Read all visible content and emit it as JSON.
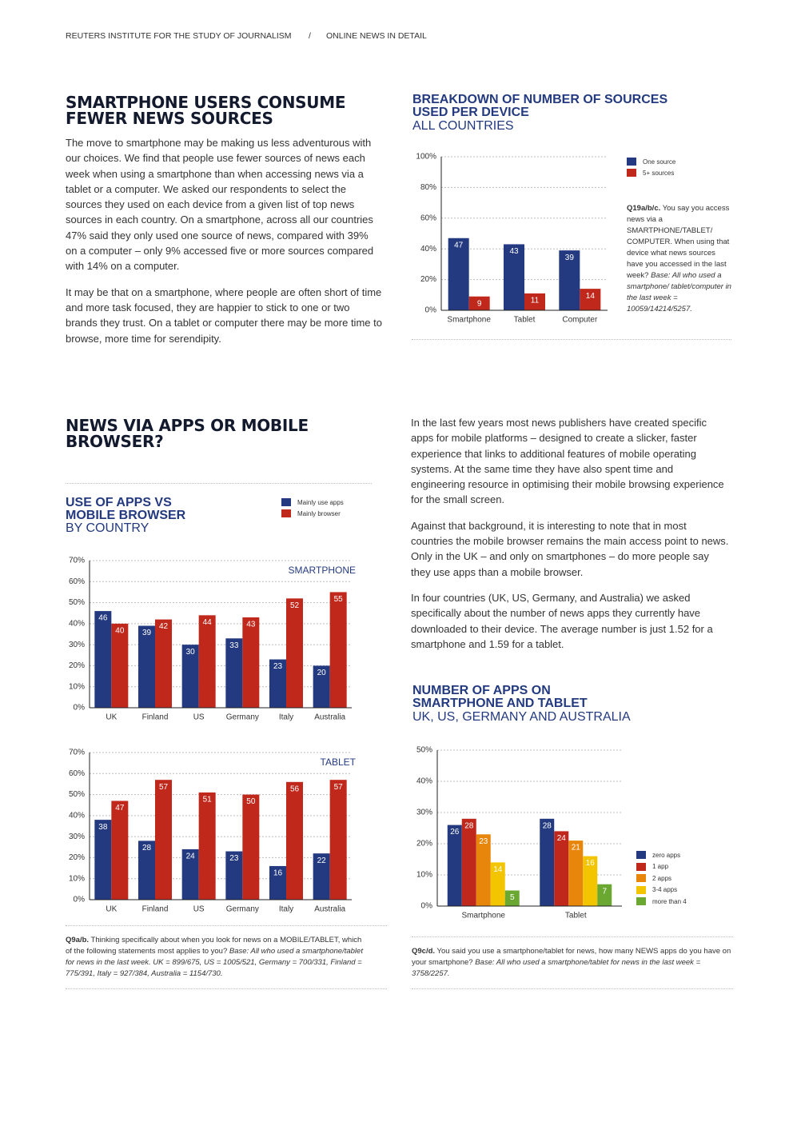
{
  "header": {
    "left": "REUTERS INSTITUTE FOR THE STUDY OF JOURNALISM",
    "separator": "/",
    "right": "ONLINE NEWS IN DETAIL"
  },
  "sections": [
    {
      "heading": "SMARTPHONE USERS CONSUME FEWER NEWS SOURCES",
      "paragraphs": [
        "The move to smartphone may be making us less adventurous with our choices. We find that people use fewer sources of news each week when using a smartphone than when accessing news via a tablet or a computer. We asked our respondents to select the sources they used on each device from a given list of top news sources in each country. On a smartphone, across all our countries 47% said they only used one source of news, compared with 39% on a computer – only 9% accessed five or more sources compared with 14% on a computer.",
        "It may be that on a smartphone, where people are often short of time and more task focused, they are happier to stick to one or two brands they trust. On a tablet or computer there may be more time to browse, more time for serendipity."
      ]
    },
    {
      "heading": "NEWS VIA APPS OR MOBILE BROWSER?",
      "paragraphs": [
        "In the last few years most news publishers have created specific apps for mobile platforms – designed to create a slicker, faster experience that links to additional features of mobile operating systems. At the same time they have also spent time and engineering resource in optimising their mobile browsing experience for the small screen.",
        "Against that background, it is interesting to note that in most countries the mobile browser remains the main access point to news. Only in the UK – and only on smartphones – do more people say they use apps than a mobile browser.",
        "In four countries (UK, US, Germany, and Australia) we asked specifically about the number of news apps they currently have downloaded to their device. The average number is just 1.52 for a smartphone and 1.59 for a tablet."
      ]
    }
  ],
  "chart_data": [
    {
      "type": "bar",
      "title": "BREAKDOWN OF NUMBER OF SOURCES USED PER DEVICE",
      "subtitle": "ALL COUNTRIES",
      "categories": [
        "Smartphone",
        "Tablet",
        "Computer"
      ],
      "series": [
        {
          "name": "One source",
          "color": "#233a80",
          "values": [
            47,
            43,
            39
          ]
        },
        {
          "name": "5+ sources",
          "color": "#c0281c",
          "values": [
            9,
            11,
            14
          ]
        }
      ],
      "ylim": [
        0,
        100
      ],
      "yticks": [
        {
          "value": 0,
          "label": "0%"
        },
        {
          "value": 20,
          "label": "20%"
        },
        {
          "value": 40,
          "label": "40%"
        },
        {
          "value": 60,
          "label": "60%"
        },
        {
          "value": 80,
          "label": "80%"
        },
        {
          "value": 100,
          "label": "100%"
        }
      ],
      "grid": true,
      "note": {
        "bold": "Q19a/b/c.",
        "text": "You say you access news via a SMARTPHONE/TABLET/ COMPUTER. When using that device what news sources have you accessed in the last week?",
        "italic": "Base: All who used a smartphone/ tablet/computer in the last week = 10059/14214/5257."
      }
    },
    {
      "type": "bar",
      "title": "USE OF APPS VS MOBILE BROWSER",
      "subtitle": "BY COUNTRY",
      "label": "SMARTPHONE",
      "categories": [
        "UK",
        "Finland",
        "US",
        "Germany",
        "Italy",
        "Australia"
      ],
      "series": [
        {
          "name": "Mainly use apps",
          "color": "#233a80",
          "values": [
            46,
            39,
            30,
            33,
            23,
            20
          ]
        },
        {
          "name": "Mainly browser",
          "color": "#c0281c",
          "values": [
            40,
            42,
            44,
            43,
            52,
            55
          ]
        }
      ],
      "ylim": [
        0,
        70
      ],
      "yticks": [
        {
          "value": 0,
          "label": "0%"
        },
        {
          "value": 10,
          "label": "10%"
        },
        {
          "value": 20,
          "label": "20%"
        },
        {
          "value": 30,
          "label": "30%"
        },
        {
          "value": 40,
          "label": "40%"
        },
        {
          "value": 50,
          "label": "50%"
        },
        {
          "value": 60,
          "label": "60%"
        },
        {
          "value": 70,
          "label": "70%"
        }
      ],
      "grid": true
    },
    {
      "type": "bar",
      "label": "TABLET",
      "categories": [
        "UK",
        "Finland",
        "US",
        "Germany",
        "Italy",
        "Australia"
      ],
      "series": [
        {
          "color": "#233a80",
          "values": [
            38,
            28,
            24,
            23,
            16,
            22
          ]
        },
        {
          "color": "#c0281c",
          "values": [
            47,
            57,
            51,
            50,
            56,
            57
          ]
        }
      ],
      "ylim": [
        0,
        70
      ],
      "yticks": [
        {
          "value": 0,
          "label": "0%"
        },
        {
          "value": 10,
          "label": "10%"
        },
        {
          "value": 20,
          "label": "20%"
        },
        {
          "value": 30,
          "label": "30%"
        },
        {
          "value": 40,
          "label": "40%"
        },
        {
          "value": 50,
          "label": "50%"
        },
        {
          "value": 60,
          "label": "60%"
        },
        {
          "value": 70,
          "label": "70%"
        }
      ],
      "grid": true,
      "note": {
        "bold": "Q9a/b.",
        "text": "Thinking specifically about when you look for news on a MOBILE/TABLET, which of the following statements most applies to you?",
        "italic": "Base: All who used a smartphone/tablet for news in the last week. UK = 899/675, US = 1005/521, Germany = 700/331, Finland = 775/391, Italy = 927/384, Australia = 1154/730."
      }
    },
    {
      "type": "bar",
      "title": "NUMBER OF APPS ON SMARTPHONE AND TABLET",
      "subtitle": "UK, US, GERMANY AND AUSTRALIA",
      "categories": [
        "Smartphone",
        "Tablet"
      ],
      "series": [
        {
          "name": "zero apps",
          "color": "#233a80",
          "values": [
            26,
            28
          ]
        },
        {
          "name": "1 app",
          "color": "#c0281c",
          "values": [
            28,
            24
          ]
        },
        {
          "name": "2 apps",
          "color": "#e8860c",
          "values": [
            23,
            21
          ]
        },
        {
          "name": "3-4 apps",
          "color": "#f2c500",
          "values": [
            14,
            16
          ]
        },
        {
          "name": "more than 4",
          "color": "#6aa832",
          "values": [
            5,
            7
          ]
        }
      ],
      "ylim": [
        0,
        50
      ],
      "yticks": [
        {
          "value": 0,
          "label": "0%"
        },
        {
          "value": 10,
          "label": "10%"
        },
        {
          "value": 20,
          "label": "20%"
        },
        {
          "value": 30,
          "label": "30%"
        },
        {
          "value": 40,
          "label": "40%"
        },
        {
          "value": 50,
          "label": "50%"
        }
      ],
      "grid": true,
      "note": {
        "bold": "Q9c/d.",
        "text": "You said you use a smartphone/tablet for news, how many NEWS apps do you have on your smartphone?",
        "italic": "Base: All who used a smartphone/tablet for news in the last week = 3758/2257."
      }
    }
  ]
}
